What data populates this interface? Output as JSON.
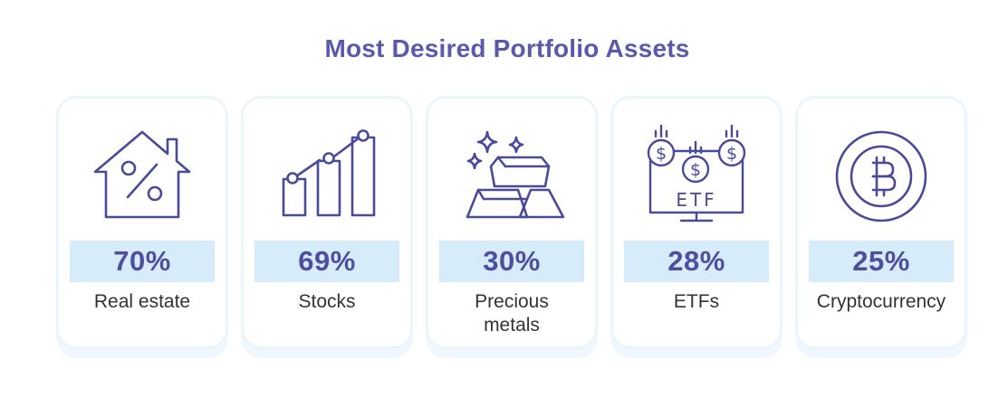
{
  "title": "Most Desired Portfolio Assets",
  "accent_color": "#5a59ad",
  "band_color": "#d6ecfa",
  "assets": [
    {
      "icon": "house-percent-icon",
      "percent": "70%",
      "label": "Real estate"
    },
    {
      "icon": "bar-chart-growth-icon",
      "percent": "69%",
      "label": "Stocks"
    },
    {
      "icon": "gold-bars-icon",
      "percent": "30%",
      "label": "Precious metals"
    },
    {
      "icon": "etf-monitor-icon",
      "percent": "28%",
      "label": "ETFs",
      "icon_text": "ETF"
    },
    {
      "icon": "bitcoin-coin-icon",
      "percent": "25%",
      "label": "Cryptocurrency"
    }
  ]
}
